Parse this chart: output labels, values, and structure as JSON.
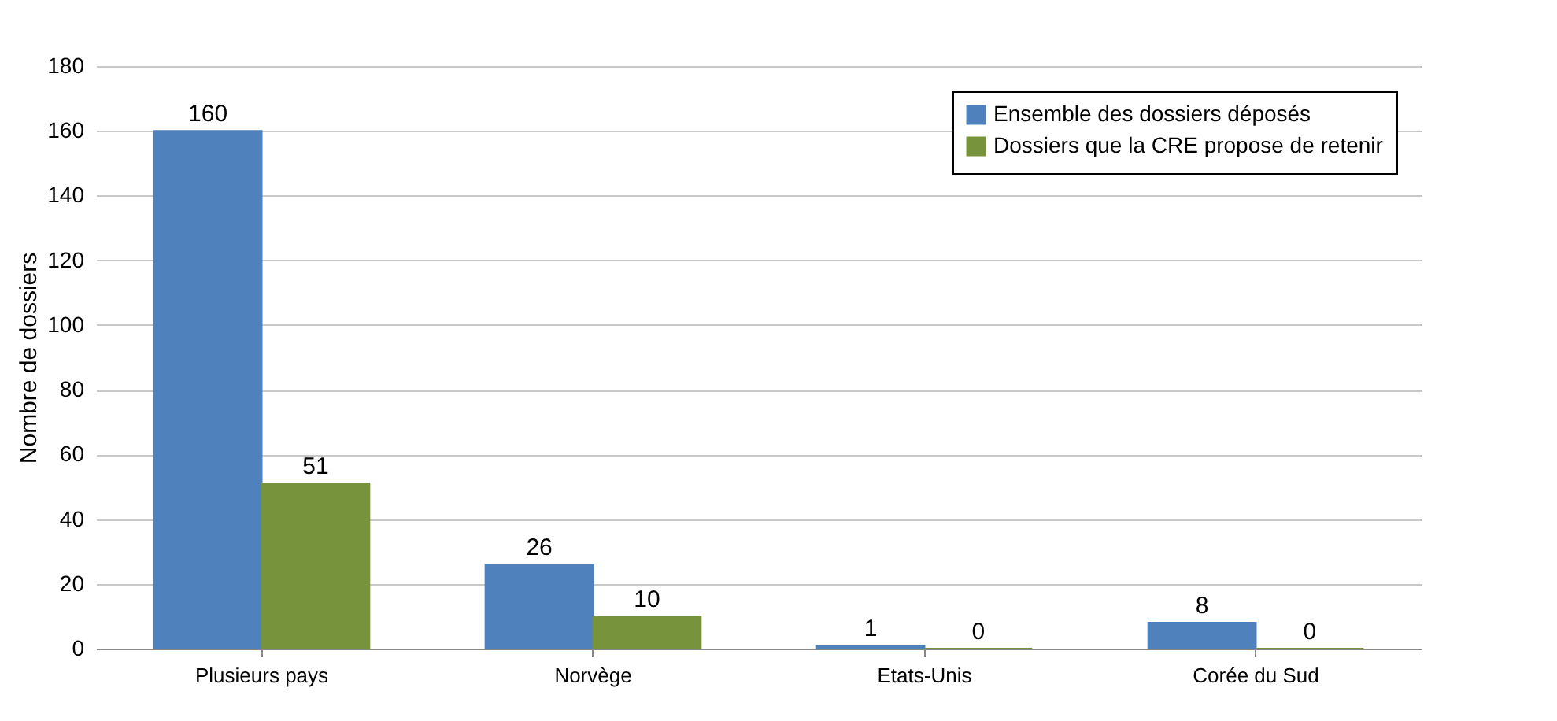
{
  "chart_data": {
    "type": "bar",
    "ylabel": "Nombre de dossiers",
    "categories": [
      "Plusieurs pays",
      "Norvège",
      "Etats-Unis",
      "Corée du Sud"
    ],
    "series": [
      {
        "name": "Ensemble des dossiers déposés",
        "color": "#4f81bd",
        "values": [
          160,
          26,
          1,
          8
        ]
      },
      {
        "name": "Dossiers que la CRE propose de retenir",
        "color": "#77933c",
        "values": [
          51,
          10,
          0,
          0
        ]
      }
    ],
    "ylim": [
      0,
      180
    ],
    "yticks": [
      0,
      20,
      40,
      60,
      80,
      100,
      120,
      140,
      160,
      180
    ],
    "grid": "y",
    "legend": "top right",
    "data_labels": true
  }
}
